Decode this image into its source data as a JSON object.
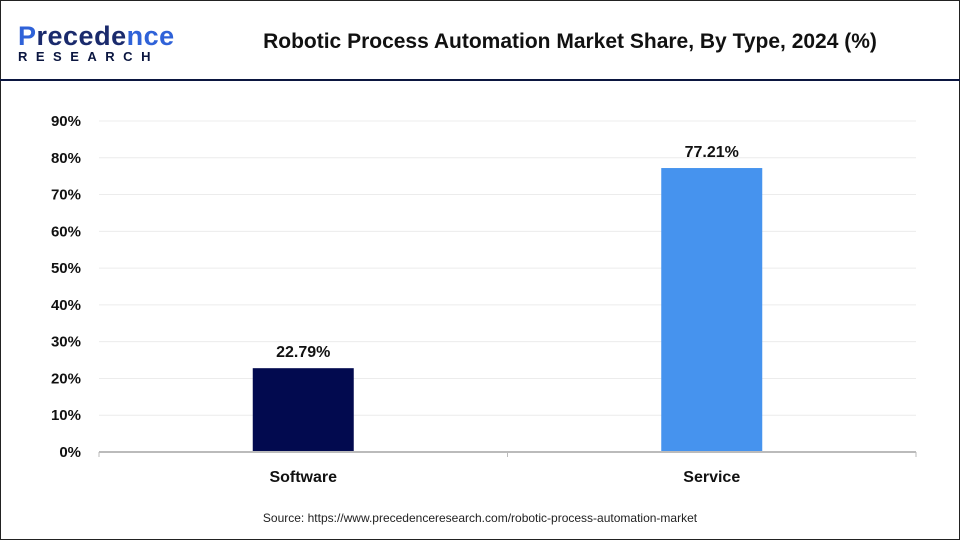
{
  "logo": {
    "line1_a": "P",
    "line1_b": "recede",
    "line1_c": "nce",
    "line2": "RESEARCH"
  },
  "title": "Robotic Process Automation Market Share, By Type, 2024 (%)",
  "source": "Source: https://www.precedenceresearch.com/robotic-process-automation-market",
  "colors": {
    "software": "#020a4f",
    "service": "#4693ee",
    "header_rule": "#0b1640"
  },
  "chart_data": {
    "type": "bar",
    "title": "Robotic Process Automation Market Share, By Type, 2024 (%)",
    "categories": [
      "Software",
      "Service"
    ],
    "values": [
      22.79,
      77.21
    ],
    "data_labels": [
      "22.79%",
      "77.21%"
    ],
    "bar_colors": [
      "#020a4f",
      "#4693ee"
    ],
    "ylim": [
      0,
      90
    ],
    "yticks": [
      "0%",
      "10%",
      "20%",
      "30%",
      "40%",
      "50%",
      "60%",
      "70%",
      "80%",
      "90%"
    ],
    "grid": true,
    "legend": "none"
  }
}
